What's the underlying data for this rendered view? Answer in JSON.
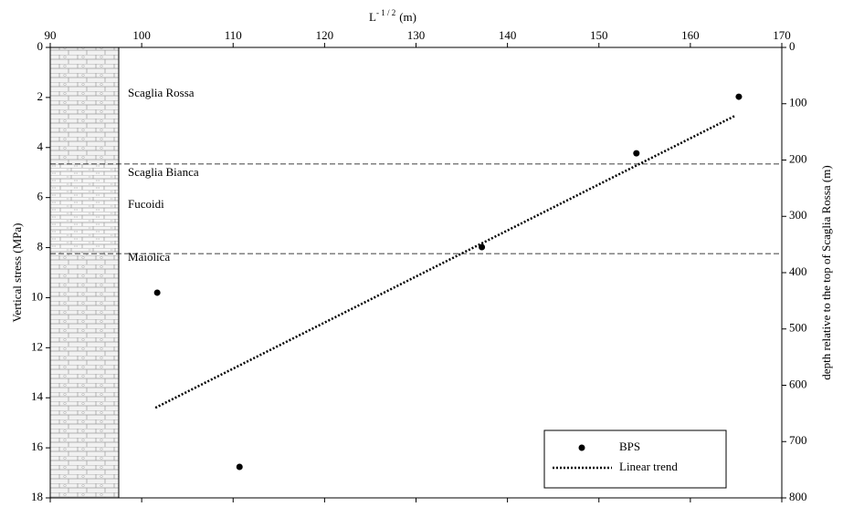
{
  "chart_data": {
    "type": "scatter",
    "xlabel": {
      "base": "L",
      "sup": "- 1 / 2",
      "unit": "(m)"
    },
    "ylabel": "Vertical stress (MPa)",
    "y2label": "depth relative to the top of Scaglia Rossa (m)",
    "xlim": [
      90,
      170
    ],
    "xticks": [
      90,
      100,
      110,
      120,
      130,
      140,
      150,
      160,
      170
    ],
    "ylim": [
      0,
      18
    ],
    "yticks": [
      0,
      2,
      4,
      6,
      8,
      10,
      12,
      14,
      16,
      18
    ],
    "y2lim": [
      0,
      800
    ],
    "y2ticks": [
      0,
      100,
      200,
      300,
      400,
      500,
      600,
      700,
      800
    ],
    "boundaries": [
      4.66,
      8.24
    ],
    "formations": [
      "Scaglia Rossa",
      "Scaglia Bianca",
      "Fucoidi",
      "Maiolica"
    ],
    "legend": "bottom-right",
    "series": [
      {
        "name": "BPS",
        "color": "#000000",
        "style": "markers",
        "x": [
          101.7,
          110.7,
          137.2,
          154.1,
          165.3
        ],
        "values": [
          9.8,
          16.76,
          7.98,
          4.23,
          1.97
        ]
      },
      {
        "name": "Linear trend",
        "color": "#000000",
        "style": "dotted-line",
        "x": [
          101.5,
          164.9
        ],
        "values": [
          14.4,
          2.73
        ]
      }
    ]
  }
}
